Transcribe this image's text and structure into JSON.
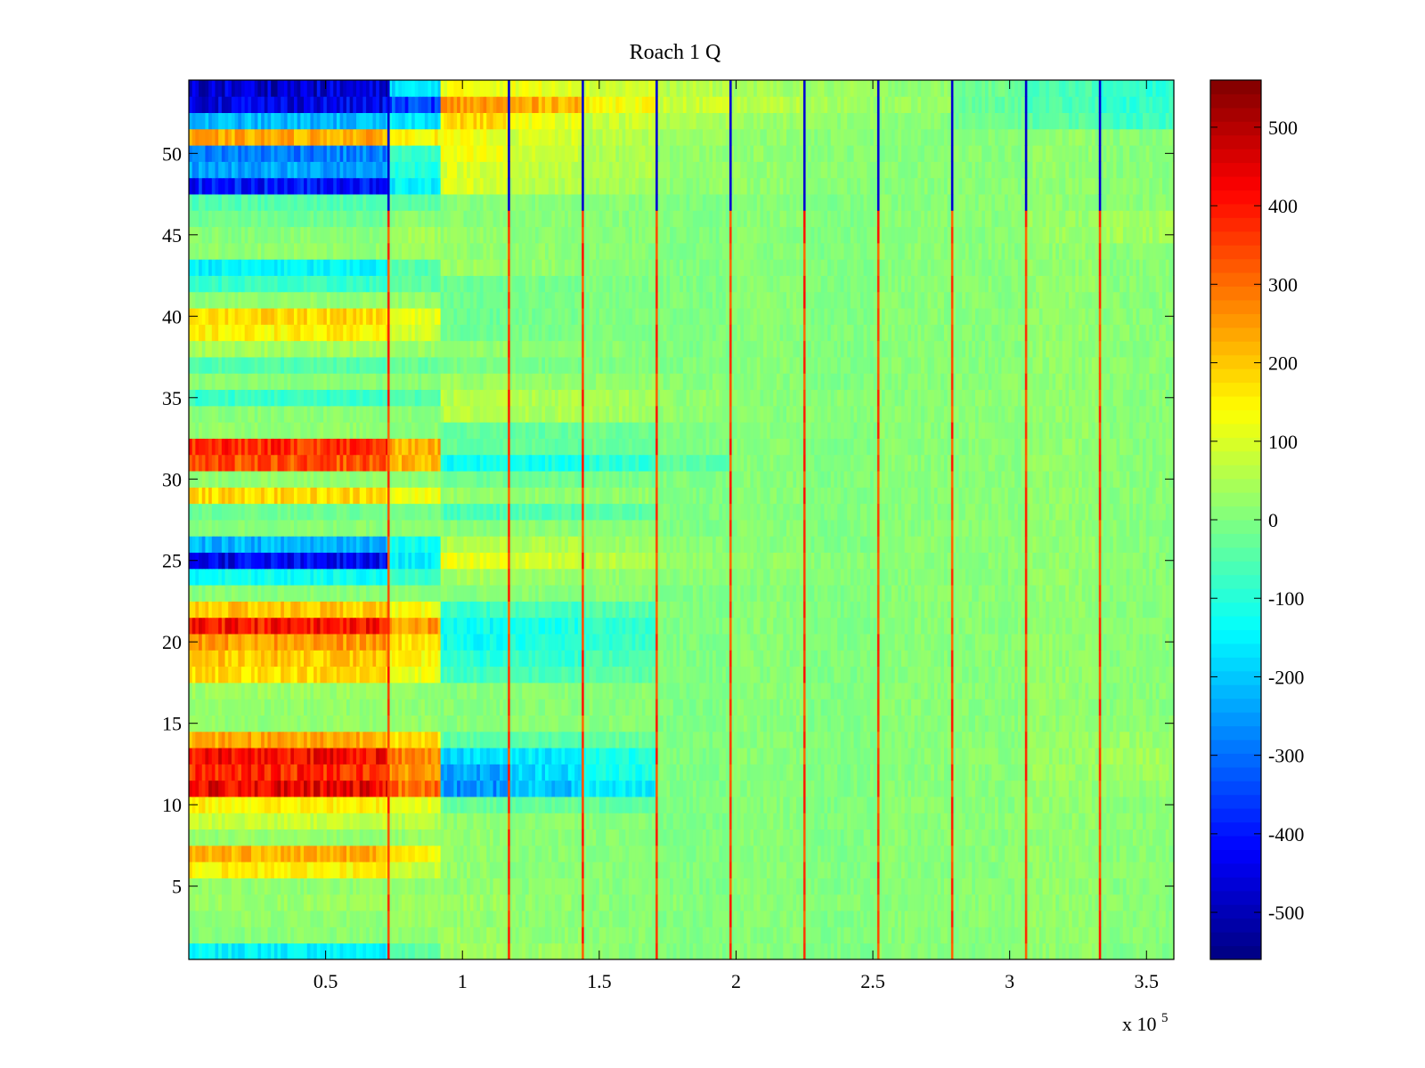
{
  "chart_data": {
    "type": "heatmap",
    "title": "Roach 1 Q",
    "xlabel": "",
    "ylabel": "",
    "x_multiplier_label": "x 10",
    "x_multiplier_exponent": "5",
    "xlim": [
      0,
      3.6
    ],
    "ylim": [
      0.5,
      54.5
    ],
    "grid": false,
    "colormap": "jet",
    "clim": [
      -560,
      560
    ],
    "xticks": [
      0.5,
      1,
      1.5,
      2,
      2.5,
      3,
      3.5
    ],
    "xtick_labels": [
      "0.5",
      "1",
      "1.5",
      "2",
      "2.5",
      "3",
      "3.5"
    ],
    "yticks": [
      5,
      10,
      15,
      20,
      25,
      30,
      35,
      40,
      45,
      50
    ],
    "ytick_labels": [
      "5",
      "10",
      "15",
      "20",
      "25",
      "30",
      "35",
      "40",
      "45",
      "50"
    ],
    "colorbar_ticks": [
      -500,
      -400,
      -300,
      -200,
      -100,
      0,
      100,
      200,
      300,
      400,
      500
    ],
    "colorbar_tick_labels": [
      "-500",
      "-400",
      "-300",
      "-200",
      "-100",
      "0",
      "100",
      "200",
      "300",
      "400",
      "500"
    ],
    "x_segment_edges": [
      0,
      0.73,
      0.92,
      1.17,
      1.44,
      1.71,
      1.98,
      2.25,
      2.52,
      2.79,
      3.06,
      3.33,
      3.6
    ],
    "y_rows": [
      1,
      2,
      3,
      4,
      5,
      6,
      7,
      8,
      9,
      10,
      11,
      12,
      13,
      14,
      15,
      16,
      17,
      18,
      19,
      20,
      21,
      22,
      23,
      24,
      25,
      26,
      27,
      28,
      29,
      30,
      31,
      32,
      33,
      34,
      35,
      36,
      37,
      38,
      39,
      40,
      41,
      42,
      43,
      44,
      45,
      46,
      47,
      48,
      49,
      50,
      51,
      52,
      53,
      54
    ],
    "approx_segment_means": [
      [
        -150,
        -40,
        40,
        30,
        10,
        0,
        10,
        0,
        10,
        0,
        20,
        0
      ],
      [
        10,
        20,
        30,
        20,
        10,
        0,
        10,
        0,
        10,
        10,
        20,
        10
      ],
      [
        20,
        30,
        20,
        10,
        10,
        0,
        10,
        0,
        10,
        10,
        20,
        10
      ],
      [
        30,
        30,
        30,
        20,
        10,
        10,
        10,
        10,
        10,
        10,
        20,
        10
      ],
      [
        20,
        20,
        20,
        10,
        10,
        0,
        10,
        0,
        10,
        10,
        20,
        10
      ],
      [
        150,
        80,
        20,
        10,
        10,
        0,
        10,
        0,
        10,
        10,
        20,
        10
      ],
      [
        230,
        150,
        20,
        10,
        10,
        0,
        10,
        0,
        10,
        10,
        20,
        10
      ],
      [
        20,
        20,
        20,
        10,
        10,
        0,
        10,
        0,
        10,
        10,
        20,
        10
      ],
      [
        80,
        60,
        20,
        10,
        10,
        0,
        10,
        0,
        10,
        10,
        20,
        10
      ],
      [
        150,
        120,
        -30,
        -30,
        -30,
        0,
        10,
        0,
        10,
        10,
        20,
        10
      ],
      [
        430,
        300,
        -260,
        -200,
        -150,
        0,
        10,
        0,
        10,
        10,
        20,
        20
      ],
      [
        380,
        250,
        -230,
        -180,
        -120,
        0,
        10,
        0,
        10,
        10,
        30,
        30
      ],
      [
        420,
        280,
        -180,
        -160,
        -110,
        0,
        10,
        0,
        10,
        10,
        30,
        40
      ],
      [
        240,
        170,
        -40,
        -40,
        -30,
        0,
        10,
        0,
        10,
        10,
        30,
        30
      ],
      [
        20,
        20,
        10,
        10,
        10,
        0,
        10,
        0,
        10,
        10,
        20,
        10
      ],
      [
        20,
        20,
        10,
        10,
        10,
        0,
        10,
        0,
        10,
        10,
        20,
        10
      ],
      [
        30,
        20,
        10,
        10,
        10,
        0,
        10,
        0,
        10,
        10,
        20,
        10
      ],
      [
        180,
        120,
        -70,
        -60,
        -40,
        0,
        10,
        0,
        10,
        10,
        20,
        10
      ],
      [
        200,
        140,
        -100,
        -80,
        -60,
        0,
        10,
        0,
        10,
        10,
        20,
        10
      ],
      [
        250,
        170,
        -130,
        -110,
        -80,
        0,
        10,
        0,
        10,
        10,
        20,
        10
      ],
      [
        400,
        250,
        -130,
        -110,
        -80,
        0,
        10,
        0,
        10,
        10,
        20,
        10
      ],
      [
        200,
        130,
        -80,
        -70,
        -50,
        0,
        10,
        0,
        10,
        10,
        20,
        10
      ],
      [
        10,
        10,
        10,
        10,
        10,
        0,
        10,
        0,
        10,
        10,
        20,
        10
      ],
      [
        -130,
        -80,
        40,
        30,
        20,
        10,
        10,
        10,
        10,
        10,
        20,
        10
      ],
      [
        -430,
        -150,
        120,
        90,
        60,
        20,
        20,
        10,
        10,
        10,
        20,
        10
      ],
      [
        -220,
        -120,
        60,
        50,
        30,
        10,
        10,
        0,
        10,
        10,
        20,
        10
      ],
      [
        10,
        10,
        10,
        10,
        10,
        0,
        10,
        0,
        10,
        10,
        20,
        10
      ],
      [
        -20,
        -10,
        -60,
        -50,
        -40,
        0,
        10,
        0,
        10,
        10,
        20,
        10
      ],
      [
        180,
        120,
        30,
        20,
        20,
        0,
        10,
        0,
        10,
        10,
        20,
        10
      ],
      [
        20,
        10,
        -20,
        -20,
        -10,
        0,
        10,
        0,
        10,
        10,
        20,
        10
      ],
      [
        330,
        220,
        -130,
        -120,
        -90,
        -40,
        10,
        0,
        10,
        10,
        20,
        10
      ],
      [
        370,
        230,
        -30,
        -30,
        -20,
        0,
        10,
        0,
        10,
        10,
        20,
        10
      ],
      [
        20,
        10,
        -30,
        -30,
        -20,
        0,
        10,
        0,
        10,
        10,
        20,
        10
      ],
      [
        10,
        10,
        60,
        50,
        40,
        20,
        10,
        10,
        10,
        10,
        20,
        10
      ],
      [
        -80,
        -50,
        60,
        50,
        40,
        20,
        10,
        10,
        10,
        10,
        20,
        10
      ],
      [
        10,
        10,
        30,
        20,
        20,
        10,
        10,
        0,
        10,
        10,
        20,
        10
      ],
      [
        -50,
        -30,
        -10,
        -10,
        0,
        0,
        10,
        0,
        10,
        10,
        20,
        10
      ],
      [
        40,
        30,
        20,
        10,
        10,
        0,
        10,
        0,
        10,
        10,
        20,
        10
      ],
      [
        150,
        90,
        -20,
        -10,
        0,
        0,
        10,
        0,
        10,
        10,
        20,
        10
      ],
      [
        180,
        110,
        -20,
        -10,
        0,
        0,
        10,
        0,
        10,
        10,
        20,
        10
      ],
      [
        20,
        20,
        -20,
        -10,
        0,
        0,
        10,
        0,
        10,
        10,
        20,
        10
      ],
      [
        -80,
        -40,
        -20,
        -10,
        0,
        0,
        10,
        0,
        10,
        10,
        20,
        10
      ],
      [
        -150,
        -50,
        30,
        20,
        10,
        0,
        10,
        0,
        10,
        10,
        20,
        10
      ],
      [
        20,
        30,
        20,
        20,
        10,
        0,
        10,
        0,
        10,
        10,
        20,
        10
      ],
      [
        10,
        40,
        20,
        10,
        10,
        0,
        10,
        0,
        10,
        10,
        30,
        40
      ],
      [
        -20,
        10,
        10,
        10,
        10,
        0,
        10,
        0,
        10,
        10,
        30,
        40
      ],
      [
        -50,
        -40,
        10,
        10,
        10,
        0,
        10,
        0,
        10,
        10,
        20,
        10
      ],
      [
        -400,
        -150,
        100,
        60,
        40,
        20,
        20,
        10,
        10,
        10,
        20,
        10
      ],
      [
        -240,
        -100,
        100,
        70,
        50,
        20,
        20,
        10,
        10,
        10,
        20,
        10
      ],
      [
        -280,
        -80,
        120,
        80,
        50,
        20,
        20,
        10,
        10,
        10,
        20,
        10
      ],
      [
        230,
        150,
        120,
        90,
        60,
        30,
        20,
        10,
        10,
        10,
        20,
        10
      ],
      [
        -220,
        -160,
        180,
        120,
        80,
        50,
        30,
        20,
        10,
        -20,
        -40,
        -70
      ],
      [
        -440,
        -350,
        250,
        230,
        140,
        80,
        60,
        40,
        30,
        -30,
        -60,
        -90
      ],
      [
        -470,
        -170,
        130,
        120,
        90,
        60,
        40,
        30,
        20,
        -20,
        -60,
        -90
      ]
    ],
    "vertical_stripes": {
      "x": [
        0.73,
        1.17,
        1.44,
        1.71,
        1.98,
        2.25,
        2.52,
        2.79,
        3.06,
        3.33
      ],
      "note": "narrow high-value lines at segment boundaries; low values in rows 47-54"
    }
  }
}
